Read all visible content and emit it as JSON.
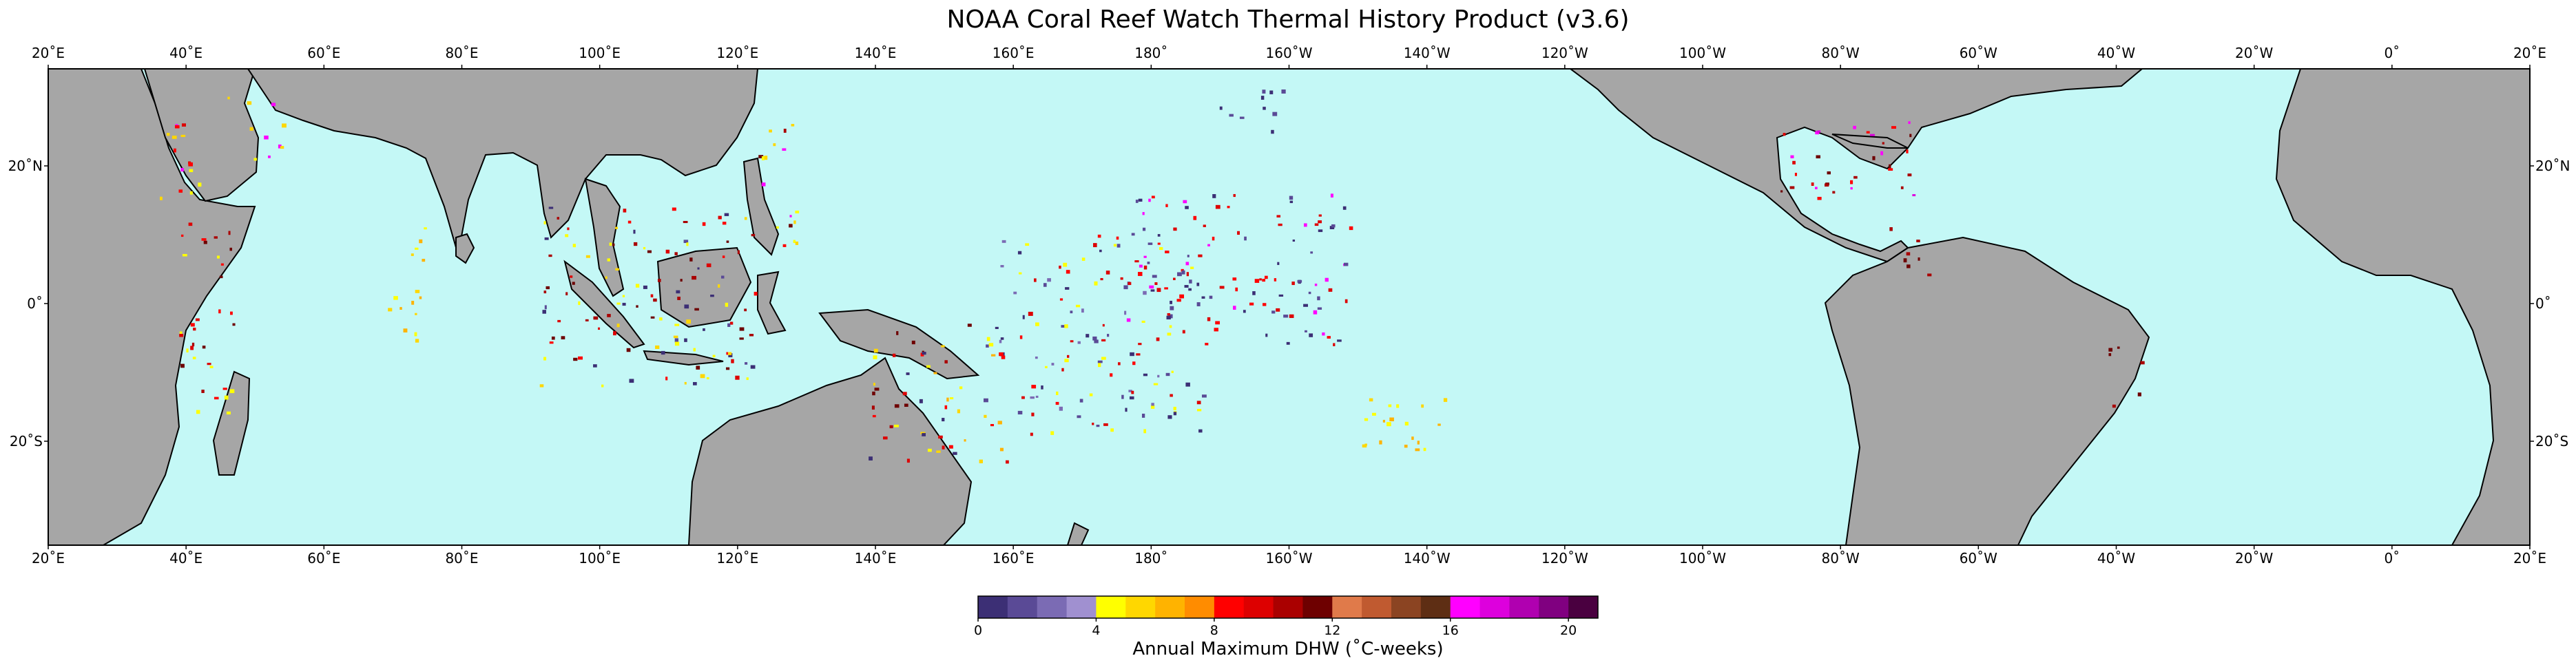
{
  "title": "NOAA Coral Reef Watch Thermal History Product (v3.6)",
  "map": {
    "ocean_color": "#c4f8f6",
    "land_color": "#a6a6a6",
    "coastline_color": "#000000",
    "longitude_labels": [
      "20˚E",
      "40˚E",
      "60˚E",
      "80˚E",
      "100˚E",
      "120˚E",
      "140˚E",
      "160˚E",
      "180˚",
      "160˚W",
      "140˚W",
      "120˚W",
      "100˚W",
      "80˚W",
      "60˚W",
      "40˚W",
      "20˚W",
      "0˚",
      "20˚E"
    ],
    "latitude_labels": [
      "20˚N",
      "0˚",
      "20˚S"
    ]
  },
  "colorbar": {
    "label": "Annual Maximum DHW (˚C-weeks)",
    "tick_labels": [
      "0",
      "4",
      "8",
      "12",
      "16",
      "20"
    ],
    "range": [
      0,
      21
    ],
    "colors": [
      "#3c2f75",
      "#5a4a96",
      "#7b6bb4",
      "#a090d0",
      "#ffff00",
      "#ffd700",
      "#ffb300",
      "#ff8c00",
      "#ff0000",
      "#dd0000",
      "#aa0000",
      "#6e0000",
      "#e07a4a",
      "#c05a30",
      "#8b4422",
      "#5e2e14",
      "#ff00ff",
      "#dd00dd",
      "#b000b0",
      "#800080",
      "#4a0040"
    ]
  }
}
